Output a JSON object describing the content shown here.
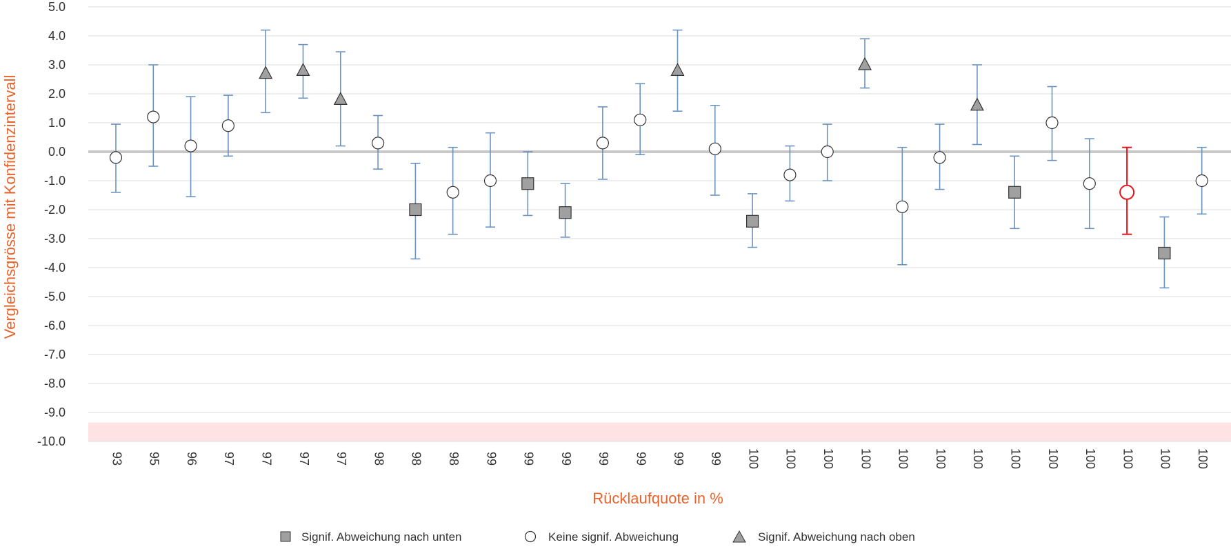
{
  "chart_data": {
    "type": "scatter",
    "subtype": "error-bar",
    "xlabel": "Rücklaufquote in %",
    "ylabel": "Vergleichsgrösse mit Konfidenzintervall",
    "ylim": [
      -10,
      5
    ],
    "y_ticks": [
      "5.0",
      "4.0",
      "3.0",
      "2.0",
      "1.0",
      "0.0",
      "-1.0",
      "-2.0",
      "-3.0",
      "-4.0",
      "-5.0",
      "-6.0",
      "-7.0",
      "-8.0",
      "-9.0",
      "-10.0"
    ],
    "y_tick_values": [
      5,
      4,
      3,
      2,
      1,
      0,
      -1,
      -2,
      -3,
      -4,
      -5,
      -6,
      -7,
      -8,
      -9,
      -10
    ],
    "grid": true,
    "reference_line": 0,
    "shaded_band": [
      -9.35,
      -10
    ],
    "categories": [
      "93",
      "95",
      "96",
      "97",
      "97",
      "97",
      "97",
      "98",
      "98",
      "98",
      "99",
      "99",
      "99",
      "99",
      "99",
      "99",
      "99",
      "100",
      "100",
      "100",
      "100",
      "100",
      "100",
      "100",
      "100",
      "100",
      "100",
      "100",
      "100",
      "100"
    ],
    "highlight_index": 27,
    "points": [
      {
        "y": -0.2,
        "low": -1.4,
        "high": 0.95,
        "marker": "none"
      },
      {
        "y": 1.2,
        "low": -0.5,
        "high": 3.0,
        "marker": "none"
      },
      {
        "y": 0.2,
        "low": -1.55,
        "high": 1.9,
        "marker": "none"
      },
      {
        "y": 0.9,
        "low": -0.15,
        "high": 1.95,
        "marker": "none"
      },
      {
        "y": 2.7,
        "low": 1.35,
        "high": 4.2,
        "marker": "up"
      },
      {
        "y": 2.8,
        "low": 1.85,
        "high": 3.7,
        "marker": "up"
      },
      {
        "y": 1.8,
        "low": 0.2,
        "high": 3.45,
        "marker": "up"
      },
      {
        "y": 0.3,
        "low": -0.6,
        "high": 1.25,
        "marker": "none"
      },
      {
        "y": -2.0,
        "low": -3.7,
        "high": -0.4,
        "marker": "down"
      },
      {
        "y": -1.4,
        "low": -2.85,
        "high": 0.15,
        "marker": "none"
      },
      {
        "y": -1.0,
        "low": -2.6,
        "high": 0.65,
        "marker": "none"
      },
      {
        "y": -1.1,
        "low": -2.2,
        "high": 0.0,
        "marker": "down"
      },
      {
        "y": -2.1,
        "low": -2.95,
        "high": -1.1,
        "marker": "down"
      },
      {
        "y": 0.3,
        "low": -0.95,
        "high": 1.55,
        "marker": "none"
      },
      {
        "y": 1.1,
        "low": -0.1,
        "high": 2.35,
        "marker": "none"
      },
      {
        "y": 2.8,
        "low": 1.4,
        "high": 4.2,
        "marker": "up"
      },
      {
        "y": 0.1,
        "low": -1.5,
        "high": 1.6,
        "marker": "none"
      },
      {
        "y": -2.4,
        "low": -3.3,
        "high": -1.45,
        "marker": "down"
      },
      {
        "y": -0.8,
        "low": -1.7,
        "high": 0.2,
        "marker": "none"
      },
      {
        "y": 0.0,
        "low": -1.0,
        "high": 0.95,
        "marker": "none"
      },
      {
        "y": 3.0,
        "low": 2.2,
        "high": 3.9,
        "marker": "up"
      },
      {
        "y": -1.9,
        "low": -3.9,
        "high": 0.15,
        "marker": "none"
      },
      {
        "y": -0.2,
        "low": -1.3,
        "high": 0.95,
        "marker": "none"
      },
      {
        "y": 1.6,
        "low": 0.25,
        "high": 3.0,
        "marker": "up"
      },
      {
        "y": -1.4,
        "low": -2.65,
        "high": -0.15,
        "marker": "down"
      },
      {
        "y": 1.0,
        "low": -0.3,
        "high": 2.25,
        "marker": "none"
      },
      {
        "y": -1.1,
        "low": -2.65,
        "high": 0.45,
        "marker": "none"
      },
      {
        "y": -1.4,
        "low": -2.85,
        "high": 0.15,
        "marker": "none"
      },
      {
        "y": -3.5,
        "low": -4.7,
        "high": -2.25,
        "marker": "down"
      },
      {
        "y": -1.0,
        "low": -2.15,
        "high": 0.15,
        "marker": "none"
      }
    ],
    "legend": [
      {
        "label": "Signif. Abweichung nach unten",
        "marker": "down"
      },
      {
        "label": "Keine signif. Abweichung",
        "marker": "none"
      },
      {
        "label": "Signif. Abweichung nach oben",
        "marker": "up"
      }
    ],
    "legend_position": "bottom-center",
    "colors": {
      "errorbar": "#6b93bf",
      "highlight": "#e8141b",
      "axis_title": "#e8632b",
      "grid": "#dcdcdc",
      "zero_line": "#c8c8c8",
      "band": "#fde3e3",
      "marker_fill": "#a0a0a0",
      "marker_stroke": "#333333"
    }
  }
}
